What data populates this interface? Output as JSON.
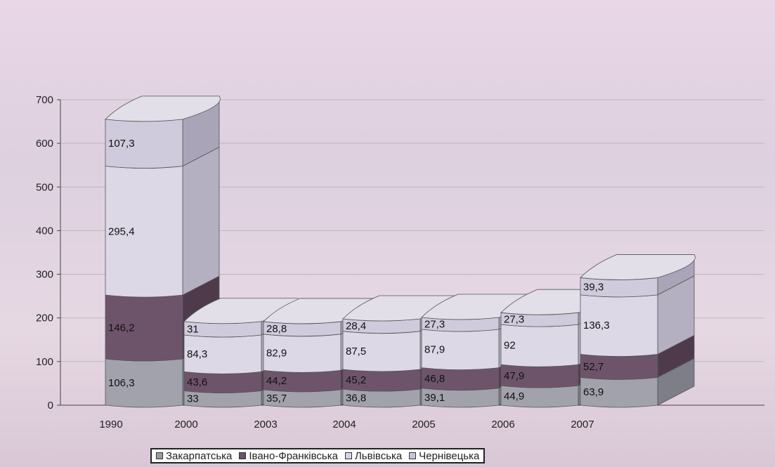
{
  "chart_data": {
    "type": "bar",
    "stacked": true,
    "three_d": true,
    "categories": [
      "1990",
      "2000",
      "2003",
      "2004",
      "2005",
      "2006",
      "2007"
    ],
    "series": [
      {
        "name": "Закарпатська",
        "color": "#9a9aa4",
        "values": [
          106.3,
          33,
          35.7,
          36.8,
          39.1,
          44.9,
          63.9
        ]
      },
      {
        "name": "Івано-Франківська",
        "color": "#6a5268",
        "values": [
          146.2,
          43.6,
          44.2,
          45.2,
          46.8,
          47.9,
          52.7
        ]
      },
      {
        "name": "Львівська",
        "color": "#d7d3e2",
        "values": [
          295.4,
          84.3,
          82.9,
          87.5,
          87.9,
          92,
          136.3
        ]
      },
      {
        "name": "Чернівецька",
        "color": "#cac6d6",
        "values": [
          107.3,
          31,
          28.8,
          28.4,
          27.3,
          27.3,
          39.3
        ]
      }
    ],
    "data_labels": [
      [
        "106,3",
        "146,2",
        "295,4",
        "107,3"
      ],
      [
        "33",
        "43,6",
        "84,3",
        "31"
      ],
      [
        "35,7",
        "44,2",
        "82,9",
        "28,8"
      ],
      [
        "36,8",
        "45,2",
        "87,5",
        "28,4"
      ],
      [
        "39,1",
        "46,8",
        "87,9",
        "27,3"
      ],
      [
        "44,9",
        "47,9",
        "92",
        "27,3"
      ],
      [
        "63,9",
        "52,7",
        "136,3",
        "39,3"
      ]
    ],
    "y_ticks": [
      "0",
      "100",
      "200",
      "300",
      "400",
      "500",
      "600",
      "700"
    ],
    "ylim": [
      0,
      700
    ],
    "grid": true,
    "legend_position": "bottom"
  }
}
